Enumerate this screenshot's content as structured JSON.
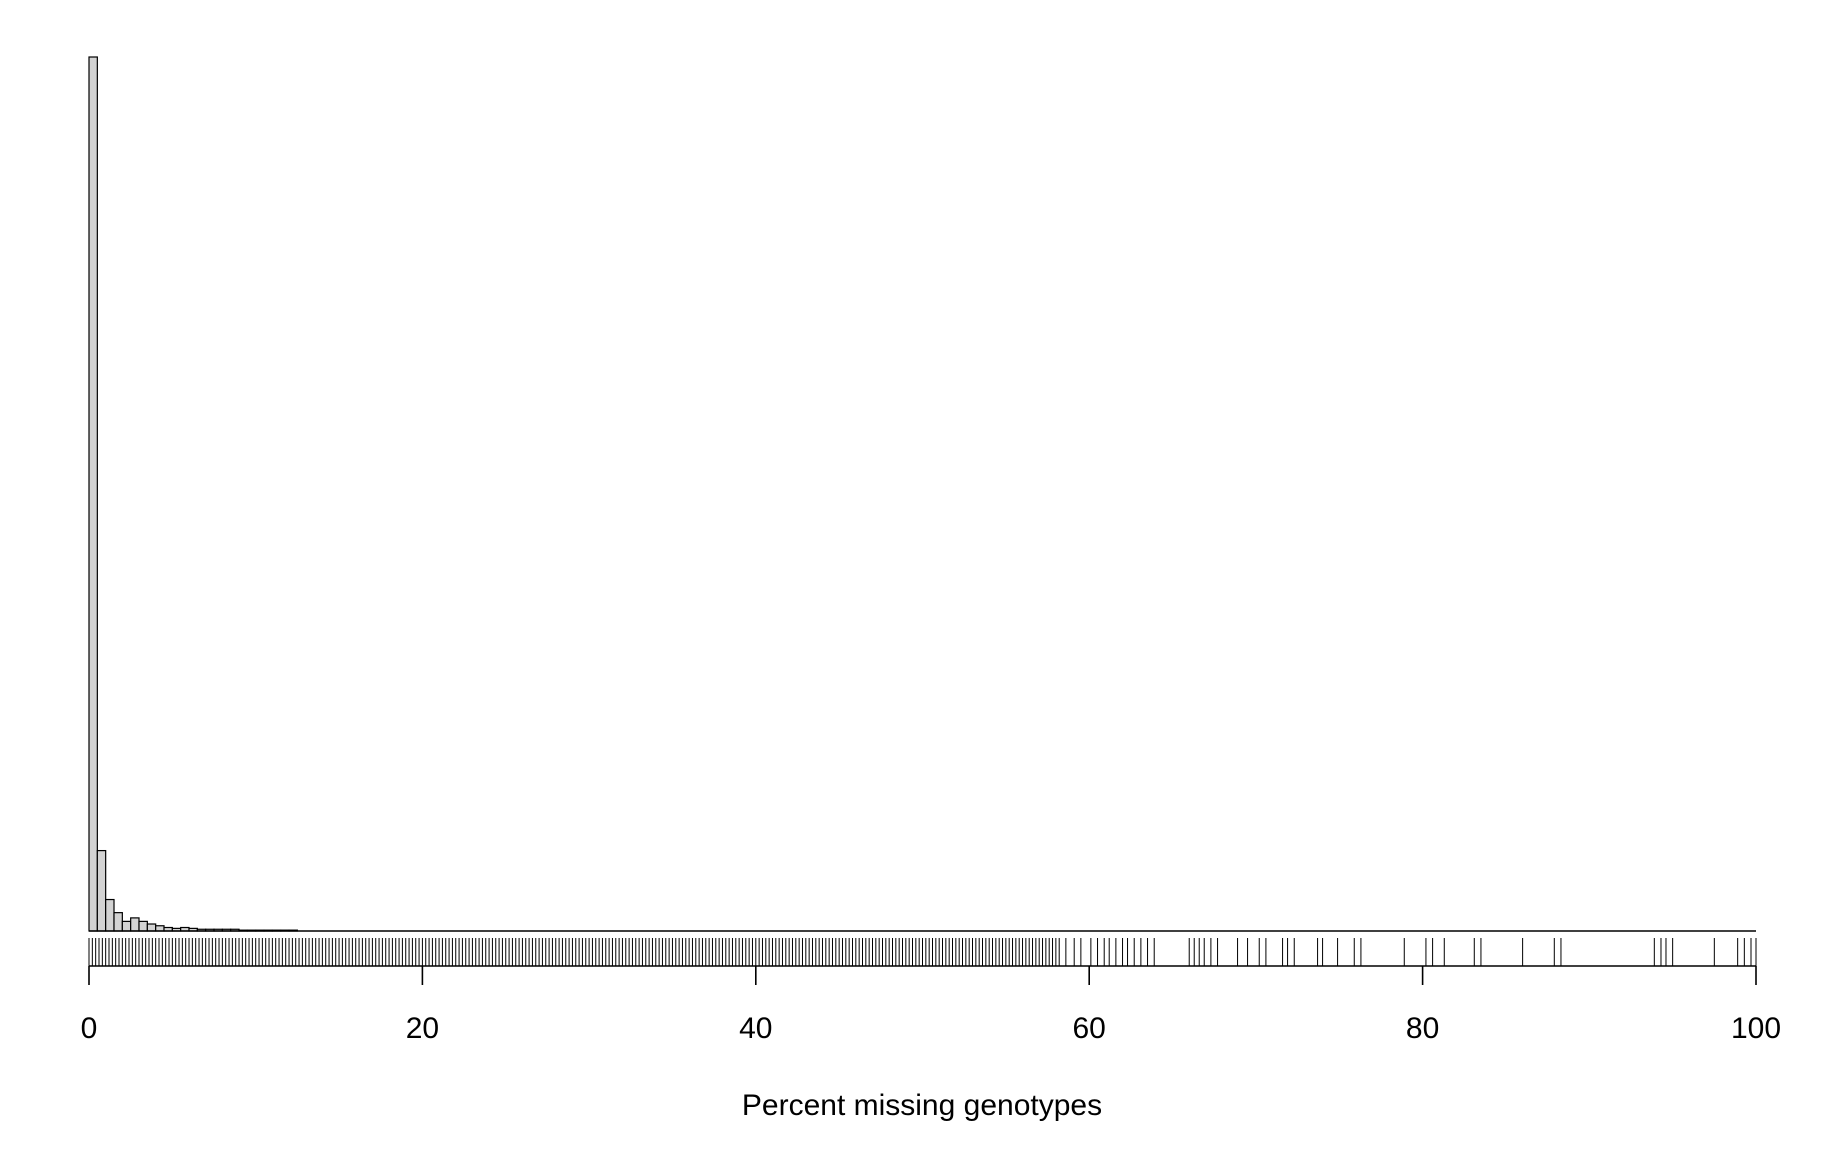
{
  "chart_data": {
    "type": "bar",
    "title": "",
    "xlabel": "Percent missing genotypes",
    "ylabel": "",
    "xlim": [
      0,
      100
    ],
    "xticks": [
      0,
      20,
      40,
      60,
      80,
      100
    ],
    "tick_labels": [
      "0",
      "20",
      "40",
      "60",
      "80",
      "100"
    ],
    "bin_width": 0.5,
    "bin_starts": [
      0,
      0.5,
      1,
      1.5,
      2,
      2.5,
      3,
      3.5,
      4,
      4.5,
      5,
      5.5,
      6,
      6.5,
      7,
      7.5,
      8,
      8.5,
      9,
      9.5,
      10,
      10.5,
      11,
      11.5,
      12
    ],
    "values": [
      1000,
      92,
      36,
      21,
      11,
      15,
      11,
      8,
      6,
      4,
      3,
      4,
      3,
      2,
      2,
      2,
      2,
      2,
      1,
      1,
      1,
      1,
      1,
      1,
      1
    ],
    "value_unit": "relative bar height (max = 1000), y-axis not printed",
    "rug": {
      "dense_range": [
        0,
        58
      ],
      "dense_spacing": 0.2,
      "sparse_values": [
        58.2,
        58.6,
        59.1,
        59.5,
        60.1,
        60.5,
        60.9,
        61.2,
        61.6,
        62.0,
        62.3,
        62.7,
        63.1,
        63.5,
        63.9,
        66.0,
        66.3,
        66.6,
        66.9,
        67.3,
        67.7,
        68.9,
        69.5,
        70.2,
        70.6,
        71.6,
        71.9,
        72.3,
        73.7,
        74.0,
        74.9,
        75.9,
        76.3,
        78.9,
        80.2,
        80.6,
        81.3,
        83.1,
        83.5,
        86.0,
        87.9,
        88.3,
        93.9,
        94.3,
        94.6,
        95.0,
        97.5,
        98.9,
        99.3,
        99.7,
        100
      ]
    }
  }
}
